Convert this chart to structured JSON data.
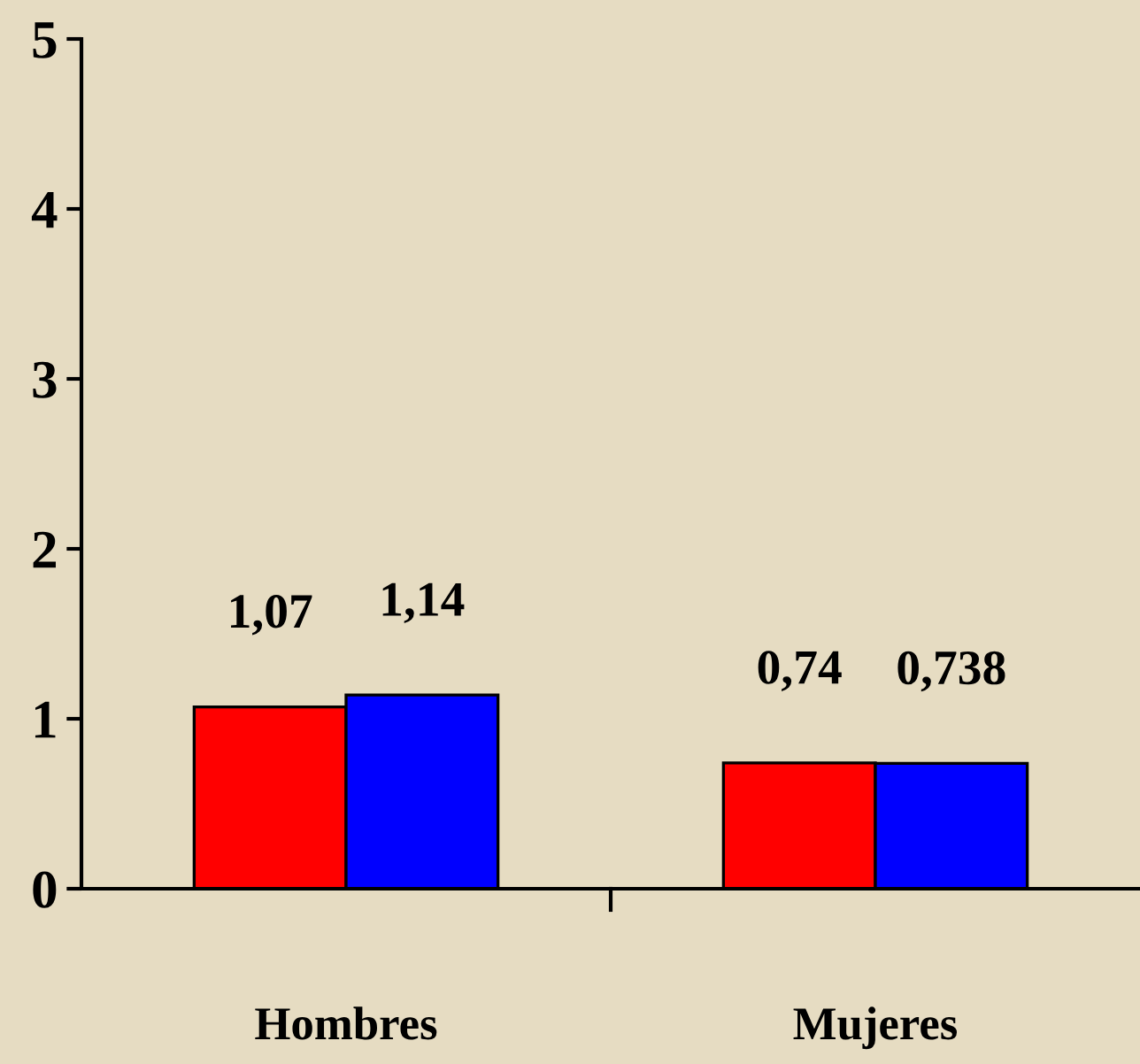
{
  "chart_data": {
    "type": "bar",
    "categories": [
      "Hombres",
      "Mujeres"
    ],
    "series": [
      {
        "color": "#ff0000",
        "values": [
          1.07,
          0.74
        ],
        "value_labels": [
          "1,07",
          "0,74"
        ]
      },
      {
        "color": "#0000ff",
        "values": [
          1.14,
          0.738
        ],
        "value_labels": [
          "1,14",
          "0,738"
        ]
      }
    ],
    "ylim": [
      0,
      5
    ],
    "yticks": [
      0,
      1,
      2,
      3,
      4,
      5
    ],
    "grid": false,
    "legend": false
  }
}
